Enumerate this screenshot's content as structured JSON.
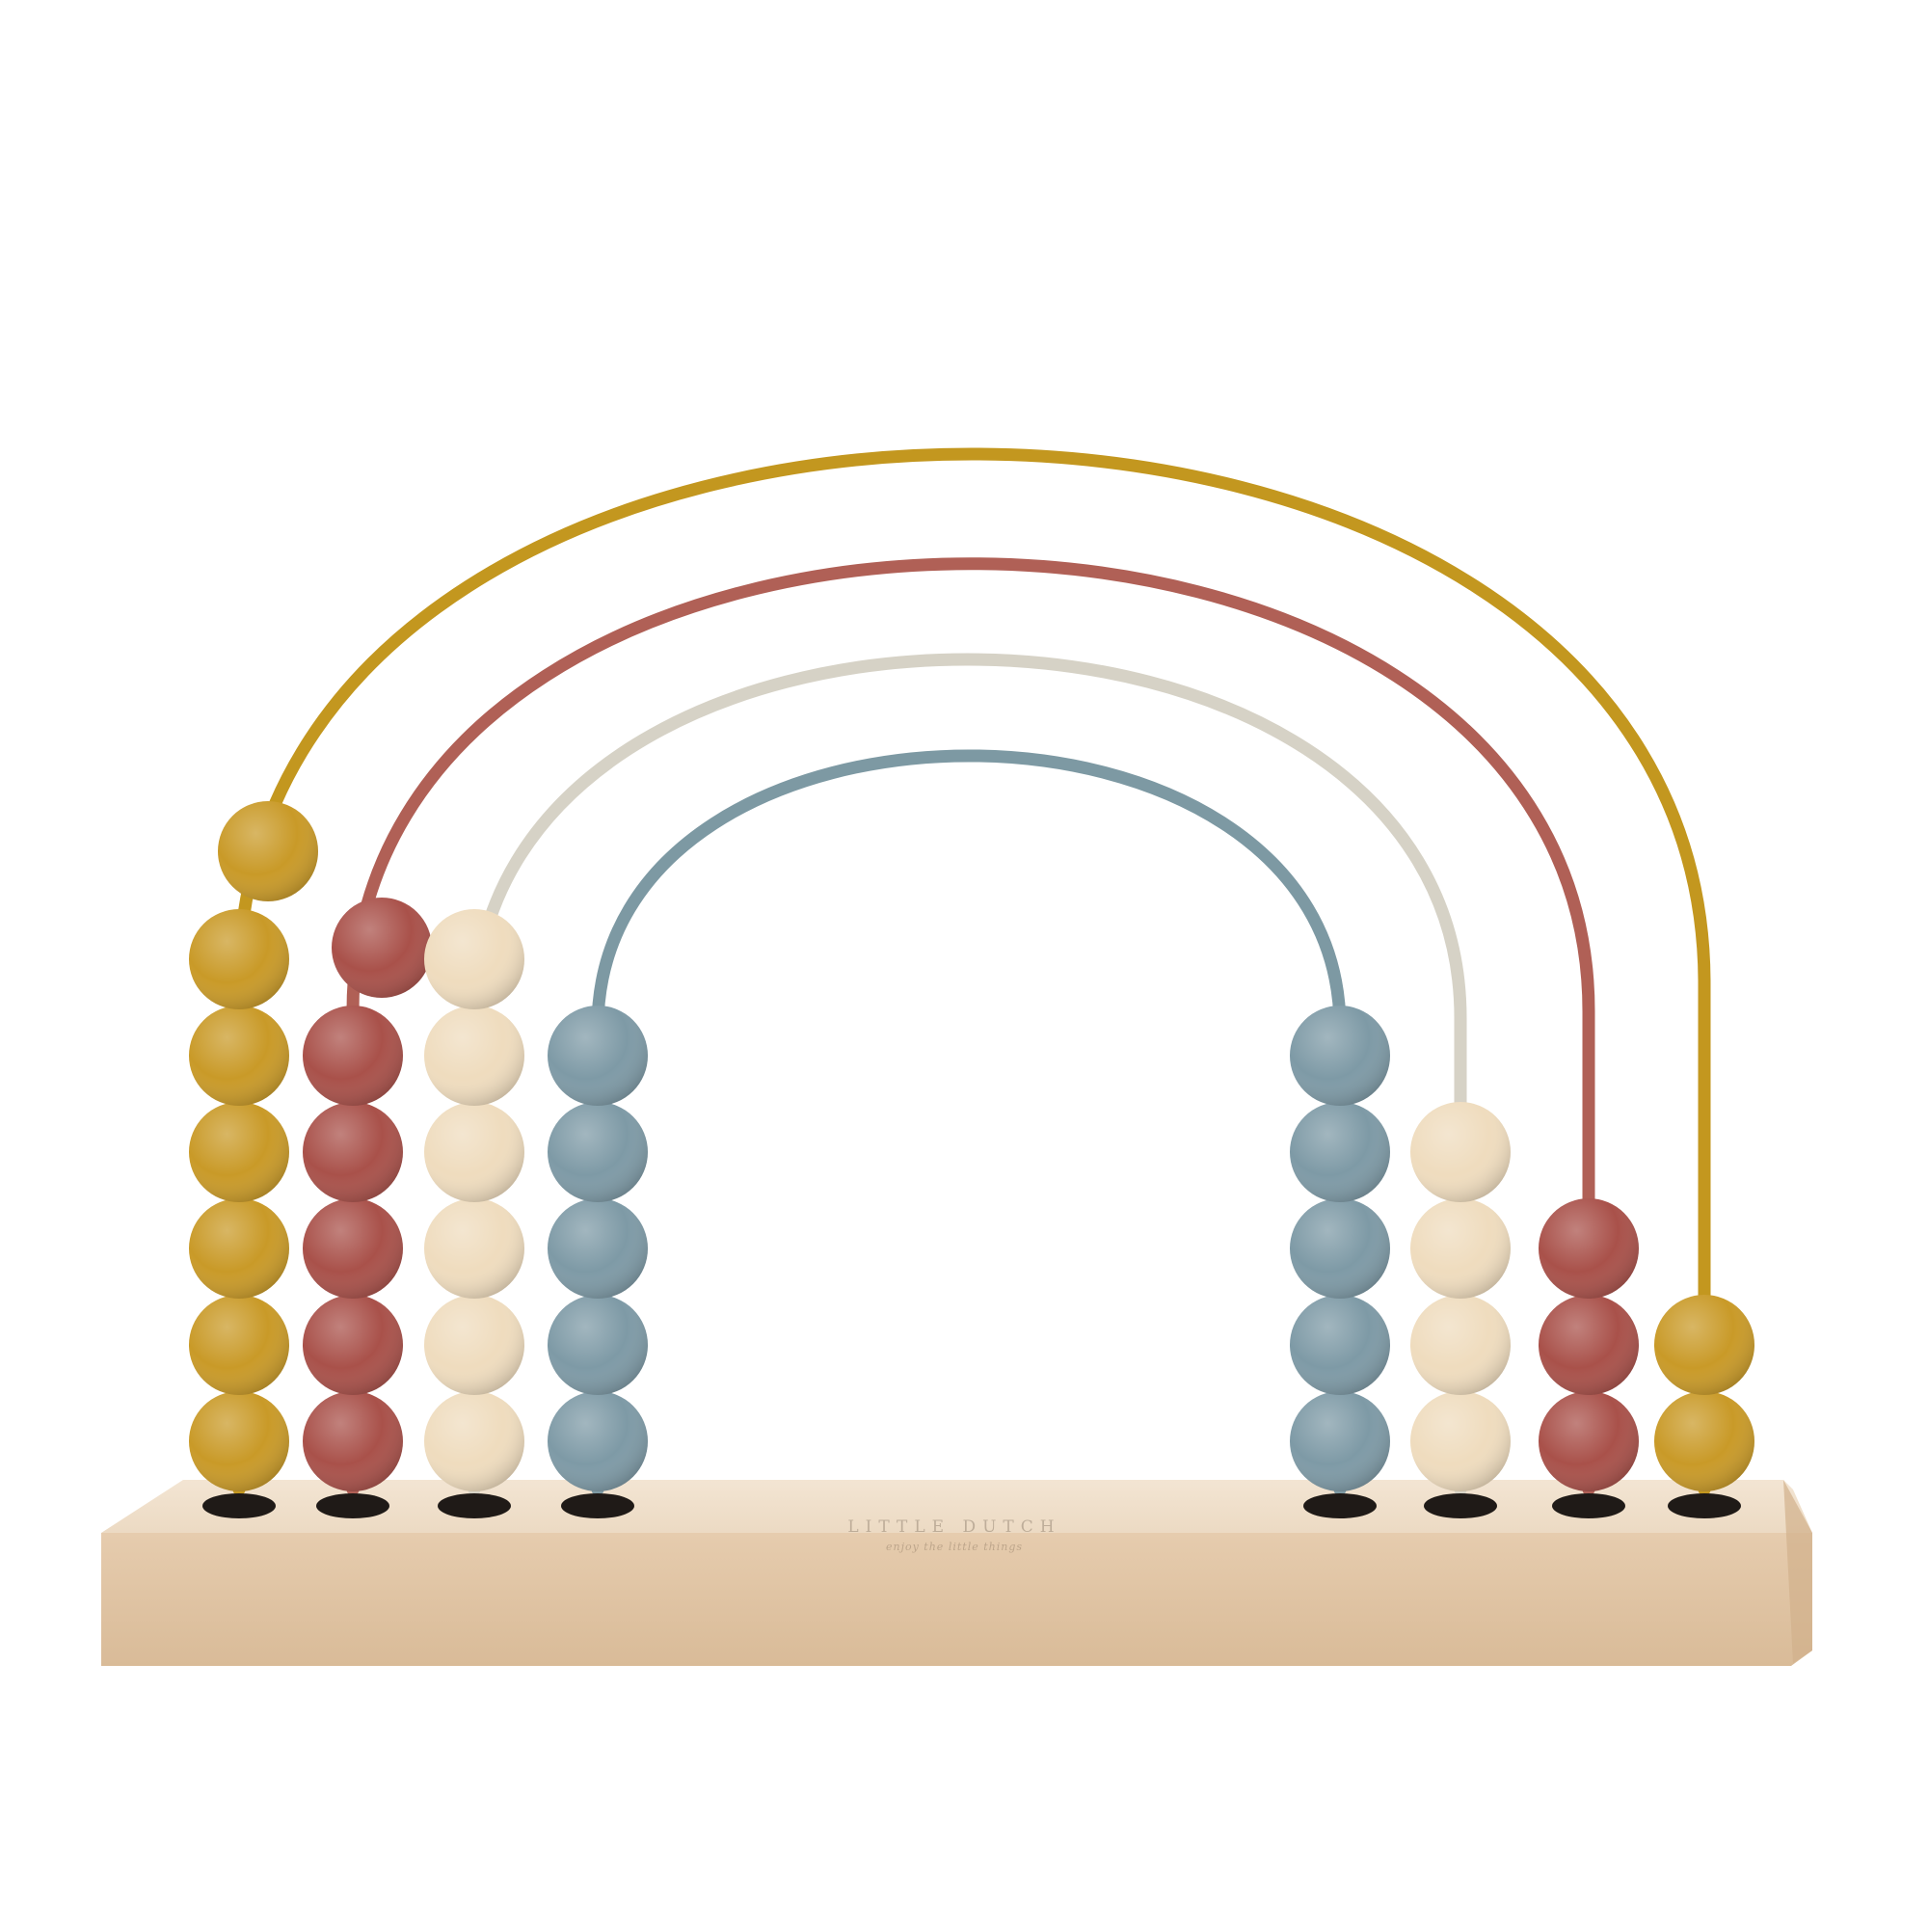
{
  "product": {
    "brand_name": "LITTLE DUTCH",
    "brand_tagline": "enjoy the little things"
  },
  "colors": {
    "background": "#ffffff",
    "wood_base": "#ead5bd",
    "mustard": "#c99a28",
    "rust": "#a9514a",
    "natural_wood": "#efdcbe",
    "blue_grey": "#7e9aa6",
    "rod_mustard": "#c3971f",
    "rod_rust": "#b06056",
    "rod_grey": "#d6d2c6",
    "rod_blue": "#7d99a3",
    "peg_black": "#1f1a17"
  },
  "rows": [
    {
      "name": "mustard",
      "color_key": "mustard",
      "rod_key": "rod_mustard",
      "left_beads": 7,
      "left_top_bead_on_arc": true,
      "right_beads": 2
    },
    {
      "name": "rust",
      "color_key": "rust",
      "rod_key": "rod_rust",
      "left_beads": 6,
      "left_top_bead_on_arc": true,
      "right_beads": 3
    },
    {
      "name": "natural",
      "color_key": "natural_wood",
      "rod_key": "rod_grey",
      "left_beads": 6,
      "left_top_bead_on_arc": false,
      "right_beads": 4
    },
    {
      "name": "blue",
      "color_key": "blue_grey",
      "rod_key": "rod_blue",
      "left_beads": 5,
      "left_top_bead_on_arc": false,
      "right_beads": 5
    }
  ]
}
